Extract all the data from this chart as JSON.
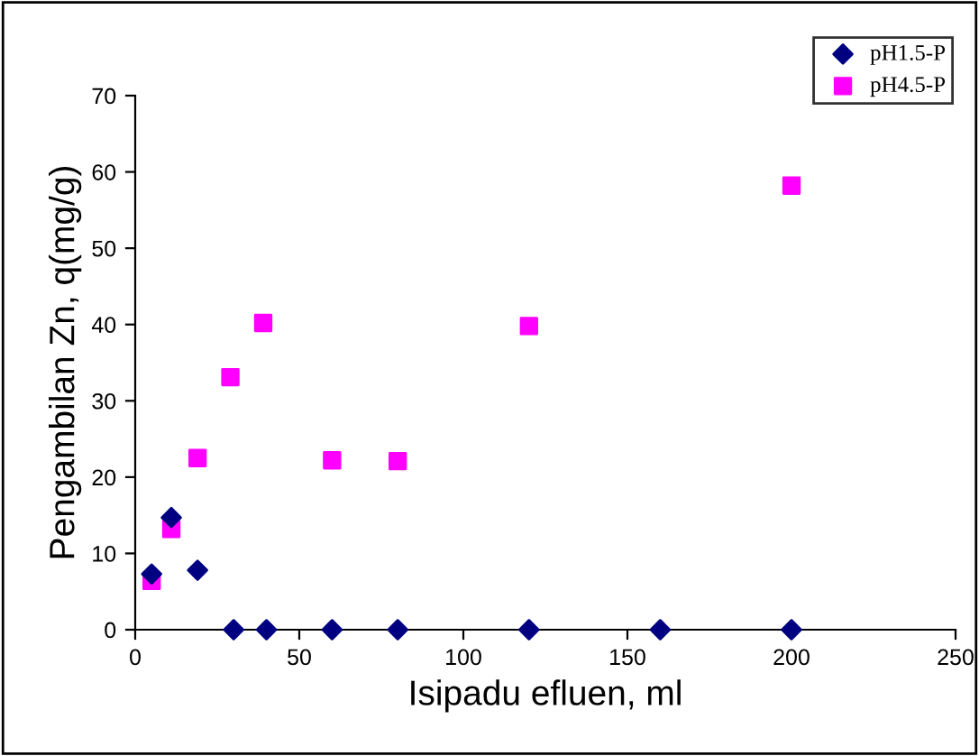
{
  "chart_data": {
    "type": "scatter",
    "xlabel": "Isipadu efluen, ml",
    "ylabel": "Pengambilan Zn, q(mg/g)",
    "xlim": [
      0,
      250
    ],
    "xticks": [
      0,
      50,
      100,
      150,
      200,
      250
    ],
    "ylim": [
      0,
      70
    ],
    "yticks": [
      0,
      10,
      20,
      30,
      40,
      50,
      60,
      70
    ],
    "grid": false,
    "legend": "top right",
    "series": [
      {
        "name": "pH1.5-P",
        "color": "#000080",
        "marker": "diamond",
        "x": [
          5,
          11,
          19,
          30,
          40,
          60,
          80,
          120,
          160,
          200
        ],
        "values": [
          7.3,
          14.7,
          7.8,
          0,
          0,
          0,
          0,
          0,
          0,
          0
        ]
      },
      {
        "name": "pH4.5-P",
        "color": "#ff00ff",
        "marker": "square",
        "x": [
          5,
          11,
          19,
          29,
          39,
          60,
          80,
          120,
          200
        ],
        "values": [
          6.4,
          13.2,
          22.5,
          33.1,
          40.2,
          22.2,
          22.1,
          39.8,
          58.2
        ]
      }
    ]
  }
}
